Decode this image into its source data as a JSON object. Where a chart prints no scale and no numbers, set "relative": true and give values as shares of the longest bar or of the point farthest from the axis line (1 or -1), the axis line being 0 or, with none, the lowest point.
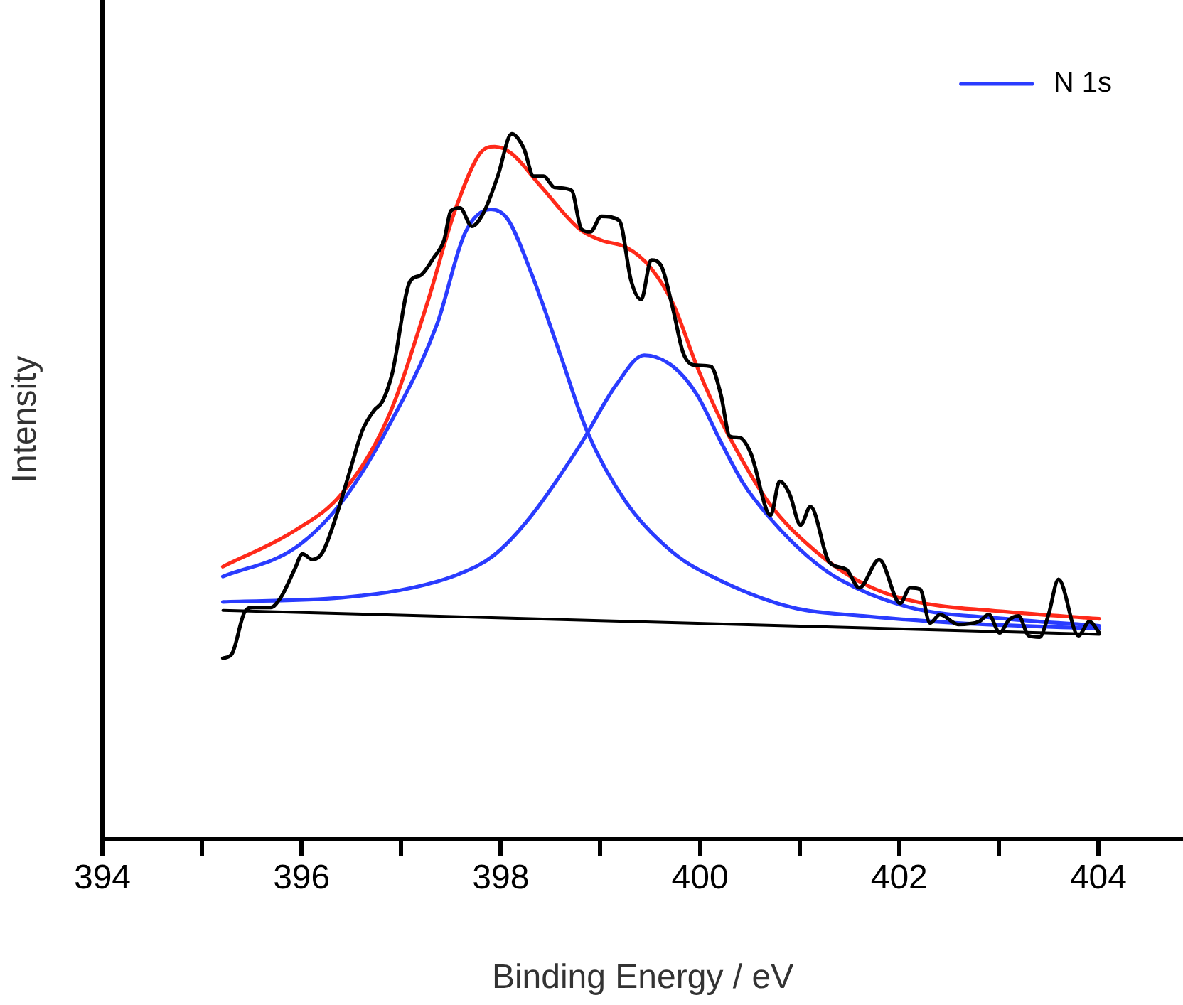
{
  "chart_data": {
    "type": "line",
    "xlabel": "Binding Energy / eV",
    "ylabel": "Intensity",
    "relative": true,
    "legend": "top right",
    "marker": "none",
    "xlim": [
      394,
      404.85
    ],
    "xticks": [
      394,
      {
        "value": 395,
        "label": null
      },
      396,
      {
        "value": 397,
        "label": null
      },
      398,
      {
        "value": 399,
        "label": null
      },
      400,
      {
        "value": 401,
        "label": null
      },
      402,
      {
        "value": 403,
        "label": null
      },
      404
    ],
    "series": [
      {
        "color": "#000000",
        "x": [
          395.21,
          395.3,
          395.43,
          395.51,
          395.69,
          395.79,
          395.93,
          396.01,
          396.11,
          396.21,
          396.36,
          396.5,
          396.61,
          396.73,
          396.81,
          396.91,
          397.09,
          397.19,
          397.33,
          397.43,
          397.5,
          397.59,
          397.71,
          397.83,
          397.97,
          398.11,
          398.23,
          398.33,
          398.43,
          398.54,
          398.71,
          398.81,
          398.9,
          399.01,
          399.19,
          399.31,
          399.41,
          399.51,
          399.61,
          399.73,
          399.83,
          399.94,
          400.11,
          400.21,
          400.3,
          400.4,
          400.51,
          400.71,
          400.8,
          400.9,
          401.01,
          401.11,
          401.3,
          401.47,
          401.6,
          401.8,
          402.01,
          402.11,
          402.21,
          402.31,
          402.41,
          402.59,
          402.8,
          402.9,
          403.01,
          403.1,
          403.2,
          403.3,
          403.41,
          403.5,
          403.6,
          403.8,
          403.91,
          404.01
        ],
        "values": [
          0.256,
          0.262,
          0.322,
          0.328,
          0.328,
          0.342,
          0.382,
          0.404,
          0.396,
          0.406,
          0.463,
          0.529,
          0.579,
          0.608,
          0.62,
          0.66,
          0.791,
          0.799,
          0.825,
          0.849,
          0.891,
          0.895,
          0.869,
          0.889,
          0.94,
          1,
          0.98,
          0.94,
          0.94,
          0.924,
          0.92,
          0.865,
          0.861,
          0.883,
          0.877,
          0.791,
          0.765,
          0.821,
          0.813,
          0.751,
          0.69,
          0.672,
          0.67,
          0.63,
          0.571,
          0.569,
          0.547,
          0.459,
          0.507,
          0.489,
          0.445,
          0.471,
          0.392,
          0.382,
          0.356,
          0.396,
          0.334,
          0.356,
          0.354,
          0.306,
          0.318,
          0.304,
          0.308,
          0.318,
          0.292,
          0.31,
          0.316,
          0.288,
          0.286,
          0.318,
          0.368,
          0.288,
          0.308,
          0.292
        ]
      },
      {
        "color": "#ff2a1a",
        "x": [
          395.21,
          395.93,
          396.4,
          396.87,
          397.26,
          397.54,
          397.79,
          397.94,
          398.11,
          398.4,
          398.79,
          399.01,
          399.26,
          399.5,
          399.73,
          399.97,
          400.11,
          400.3,
          400.69,
          401.16,
          401.64,
          402.11,
          403.07,
          404.01
        ],
        "values": [
          0.386,
          0.437,
          0.489,
          0.598,
          0.759,
          0.891,
          0.972,
          0.982,
          0.972,
          0.926,
          0.865,
          0.849,
          0.839,
          0.811,
          0.759,
          0.67,
          0.624,
          0.569,
          0.477,
          0.408,
          0.362,
          0.338,
          0.322,
          0.312
        ]
      },
      {
        "name": "N 1s",
        "color": "#2a3cff",
        "x": [
          395.21,
          395.93,
          396.4,
          396.87,
          397.36,
          397.64,
          397.9,
          398.07,
          398.3,
          398.59,
          398.87,
          399.26,
          399.73,
          400.21,
          400.93,
          401.64,
          402.59,
          404.01
        ],
        "values": [
          0.372,
          0.412,
          0.477,
          0.584,
          0.73,
          0.859,
          0.893,
          0.879,
          0.805,
          0.69,
          0.577,
          0.477,
          0.406,
          0.366,
          0.328,
          0.316,
          0.306,
          0.298
        ]
      },
      {
        "color": "#2a3cff",
        "x": [
          395.21,
          396.4,
          397.11,
          397.59,
          397.93,
          398.3,
          398.79,
          399.16,
          399.44,
          399.73,
          399.97,
          400.21,
          400.44,
          400.69,
          401.07,
          401.4,
          402.11,
          403.07,
          404.01
        ],
        "values": [
          0.336,
          0.342,
          0.356,
          0.376,
          0.402,
          0.457,
          0.557,
          0.644,
          0.686,
          0.67,
          0.63,
          0.563,
          0.503,
          0.457,
          0.402,
          0.368,
          0.328,
          0.312,
          0.302
        ]
      },
      {
        "color": "#000000",
        "x": [
          395.21,
          404.01
        ],
        "values": [
          0.324,
          0.29
        ]
      }
    ]
  }
}
